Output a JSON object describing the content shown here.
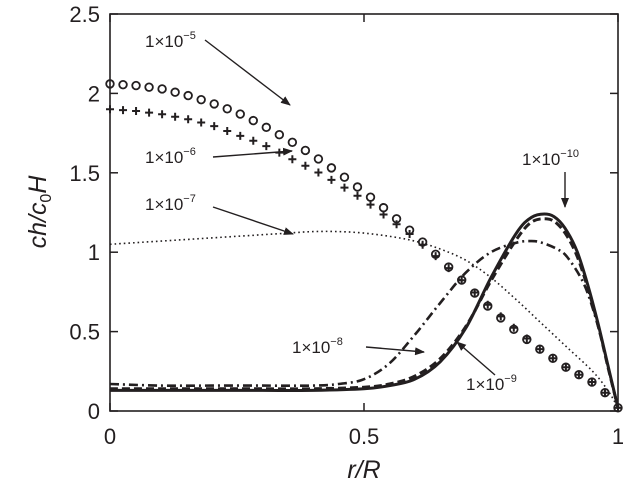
{
  "chart_data": {
    "type": "line",
    "xlabel": "r/R",
    "ylabel": "ch/c0H",
    "xlim": [
      0,
      1
    ],
    "ylim": [
      0,
      2.5
    ],
    "xticks": [
      0,
      0.5,
      1
    ],
    "xtick_labels": [
      "0",
      "0.5",
      "1"
    ],
    "yticks": [
      0,
      0.5,
      1,
      1.5,
      2,
      2.5
    ],
    "ytick_labels": [
      "0",
      "0.5",
      "1",
      "1.5",
      "2",
      "2.5"
    ],
    "grid": false,
    "legend": "none (inline annotations)",
    "series": [
      {
        "style": "open-circles",
        "x": [
          0,
          0.05,
          0.1,
          0.15,
          0.2,
          0.25,
          0.3,
          0.35,
          0.4,
          0.45,
          0.5,
          0.55,
          0.6,
          0.65,
          0.7,
          0.75,
          0.8,
          0.85,
          0.9,
          0.95,
          0.98,
          1.0
        ],
        "y": [
          2.06,
          2.05,
          2.03,
          1.99,
          1.94,
          1.88,
          1.8,
          1.71,
          1.61,
          1.5,
          1.38,
          1.25,
          1.11,
          0.96,
          0.8,
          0.64,
          0.5,
          0.38,
          0.27,
          0.18,
          0.1,
          0.02
        ]
      },
      {
        "style": "plus-markers",
        "x": [
          0,
          0.05,
          0.1,
          0.15,
          0.2,
          0.25,
          0.3,
          0.35,
          0.4,
          0.45,
          0.5,
          0.55,
          0.6,
          0.65,
          0.7,
          0.75,
          0.8,
          0.85,
          0.9,
          0.95,
          0.98,
          1.0
        ],
        "y": [
          1.9,
          1.89,
          1.87,
          1.84,
          1.8,
          1.74,
          1.68,
          1.6,
          1.52,
          1.43,
          1.33,
          1.21,
          1.09,
          0.95,
          0.8,
          0.65,
          0.51,
          0.38,
          0.27,
          0.18,
          0.1,
          0.02
        ]
      },
      {
        "style": "dotted",
        "x": [
          0,
          0.05,
          0.1,
          0.15,
          0.2,
          0.25,
          0.3,
          0.35,
          0.4,
          0.45,
          0.5,
          0.55,
          0.6,
          0.65,
          0.7,
          0.75,
          0.8,
          0.85,
          0.9,
          0.95,
          0.98,
          1.0
        ],
        "y": [
          1.05,
          1.06,
          1.07,
          1.08,
          1.09,
          1.1,
          1.11,
          1.12,
          1.13,
          1.13,
          1.12,
          1.1,
          1.07,
          1.02,
          0.95,
          0.84,
          0.7,
          0.55,
          0.4,
          0.25,
          0.13,
          0.02
        ]
      },
      {
        "style": "dash-dot",
        "x": [
          0,
          0.1,
          0.2,
          0.3,
          0.4,
          0.45,
          0.5,
          0.55,
          0.6,
          0.65,
          0.7,
          0.75,
          0.8,
          0.83,
          0.85,
          0.88,
          0.9,
          0.93,
          0.95,
          0.97,
          0.99,
          1.0
        ],
        "y": [
          0.17,
          0.16,
          0.16,
          0.16,
          0.16,
          0.17,
          0.2,
          0.3,
          0.48,
          0.68,
          0.87,
          1.0,
          1.06,
          1.07,
          1.06,
          1.02,
          0.97,
          0.82,
          0.65,
          0.42,
          0.15,
          0.02
        ]
      },
      {
        "style": "dashed",
        "x": [
          0,
          0.1,
          0.2,
          0.3,
          0.4,
          0.5,
          0.55,
          0.6,
          0.65,
          0.7,
          0.75,
          0.8,
          0.83,
          0.86,
          0.88,
          0.9,
          0.92,
          0.94,
          0.96,
          0.98,
          1.0
        ],
        "y": [
          0.14,
          0.14,
          0.14,
          0.14,
          0.14,
          0.15,
          0.17,
          0.22,
          0.33,
          0.53,
          0.82,
          1.08,
          1.19,
          1.21,
          1.18,
          1.1,
          0.97,
          0.78,
          0.55,
          0.28,
          0.02
        ]
      },
      {
        "style": "solid",
        "x": [
          0,
          0.1,
          0.2,
          0.3,
          0.4,
          0.5,
          0.55,
          0.6,
          0.65,
          0.7,
          0.75,
          0.8,
          0.83,
          0.86,
          0.88,
          0.9,
          0.92,
          0.94,
          0.96,
          0.98,
          1.0
        ],
        "y": [
          0.13,
          0.13,
          0.13,
          0.13,
          0.13,
          0.14,
          0.16,
          0.2,
          0.31,
          0.52,
          0.84,
          1.12,
          1.22,
          1.24,
          1.21,
          1.13,
          1.0,
          0.8,
          0.56,
          0.29,
          0.02
        ]
      }
    ],
    "annotations": [
      {
        "base": "1×10",
        "exp": "−5"
      },
      {
        "base": "1×10",
        "exp": "−6"
      },
      {
        "base": "1×10",
        "exp": "−7"
      },
      {
        "base": "1×10",
        "exp": "−8"
      },
      {
        "base": "1×10",
        "exp": "−9"
      },
      {
        "base": "1×10",
        "exp": "−10"
      }
    ]
  }
}
